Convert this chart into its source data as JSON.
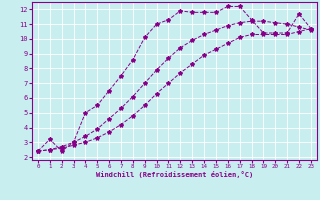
{
  "xlabel": "Windchill (Refroidissement éolien,°C)",
  "bg_color": "#c8eef0",
  "line_color": "#880088",
  "grid_color": "#ffffff",
  "xlim": [
    -0.5,
    23.5
  ],
  "ylim": [
    1.8,
    12.5
  ],
  "yticks": [
    2,
    3,
    4,
    5,
    6,
    7,
    8,
    9,
    10,
    11,
    12
  ],
  "xticks": [
    0,
    1,
    2,
    3,
    4,
    5,
    6,
    7,
    8,
    9,
    10,
    11,
    12,
    13,
    14,
    15,
    16,
    17,
    18,
    19,
    20,
    21,
    22,
    23
  ],
  "curve1_x": [
    0,
    1,
    2,
    3,
    4,
    5,
    6,
    7,
    8,
    9,
    10,
    11,
    12,
    13,
    14,
    15,
    16,
    17,
    18,
    19,
    20,
    21,
    22,
    23
  ],
  "curve1_y": [
    2.4,
    3.2,
    2.4,
    3.0,
    5.0,
    5.5,
    6.5,
    7.5,
    8.6,
    10.1,
    11.0,
    11.3,
    11.9,
    11.8,
    11.8,
    11.8,
    12.2,
    12.2,
    11.3,
    10.4,
    10.4,
    10.4,
    11.7,
    10.7
  ],
  "curve2_x": [
    0,
    1,
    2,
    3,
    4,
    5,
    6,
    7,
    8,
    9,
    10,
    11,
    12,
    13,
    14,
    15,
    16,
    17,
    18,
    19,
    20,
    21,
    22,
    23
  ],
  "curve2_y": [
    2.4,
    2.5,
    2.6,
    2.8,
    3.0,
    3.3,
    3.7,
    4.2,
    4.8,
    5.5,
    6.3,
    7.0,
    7.7,
    8.3,
    8.9,
    9.3,
    9.7,
    10.1,
    10.3,
    10.3,
    10.3,
    10.3,
    10.5,
    10.7
  ],
  "curve3_x": [
    0,
    1,
    2,
    3,
    4,
    5,
    6,
    7,
    8,
    9,
    10,
    11,
    12,
    13,
    14,
    15,
    16,
    17,
    18,
    19,
    20,
    21,
    22,
    23
  ],
  "curve3_y": [
    2.4,
    2.5,
    2.7,
    3.0,
    3.4,
    3.9,
    4.6,
    5.3,
    6.1,
    7.0,
    7.9,
    8.7,
    9.4,
    9.9,
    10.3,
    10.6,
    10.9,
    11.1,
    11.2,
    11.2,
    11.1,
    11.0,
    10.8,
    10.6
  ]
}
